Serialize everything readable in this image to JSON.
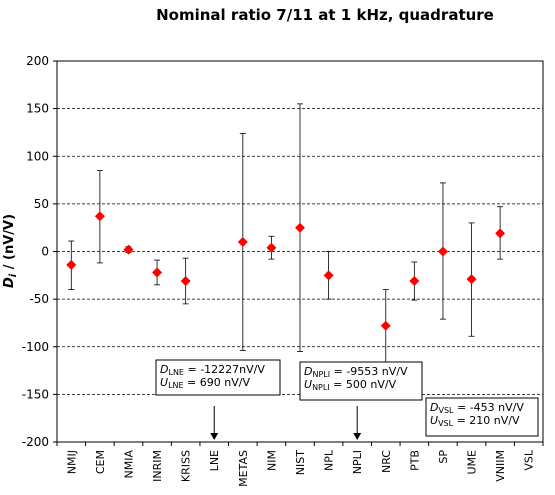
{
  "chart_data": {
    "type": "scatter",
    "title": "Nominal ratio 7/11 at 1 kHz, quadrature",
    "ylabel": "D_i / (nV/V)",
    "ylabel_parts": {
      "main": "D",
      "sub": "i",
      "unit": " / (nV/V)"
    },
    "ylim": [
      -200,
      200
    ],
    "yticks": [
      -200,
      -150,
      -100,
      -50,
      0,
      50,
      100,
      150,
      200
    ],
    "grid": "horizontal dashed",
    "series": [
      {
        "marker": "diamond",
        "color": "#ff0000",
        "points": [
          {
            "lab": "NMIJ",
            "y": -14,
            "err_lo": -40,
            "err_hi": 11
          },
          {
            "lab": "CEM",
            "y": 37,
            "err_lo": -12,
            "err_hi": 85
          },
          {
            "lab": "NMIA",
            "y": 2,
            "err_lo": -1,
            "err_hi": 5
          },
          {
            "lab": "INRIM",
            "y": -22,
            "err_lo": -35,
            "err_hi": -9
          },
          {
            "lab": "KRISS",
            "y": -31,
            "err_lo": -55,
            "err_hi": -7
          },
          {
            "lab": "LNE",
            "y": null,
            "offscale": "down"
          },
          {
            "lab": "METAS",
            "y": 10,
            "err_lo": -104,
            "err_hi": 124
          },
          {
            "lab": "NIM",
            "y": 4,
            "err_lo": -8,
            "err_hi": 16
          },
          {
            "lab": "NIST",
            "y": 25,
            "err_lo": -105,
            "err_hi": 155
          },
          {
            "lab": "NPL",
            "y": -25,
            "err_lo": -50,
            "err_hi": 0
          },
          {
            "lab": "NPLI",
            "y": null,
            "offscale": "down"
          },
          {
            "lab": "NRC",
            "y": -78,
            "err_lo": -117,
            "err_hi": -40
          },
          {
            "lab": "PTB",
            "y": -31,
            "err_lo": -51,
            "err_hi": -11
          },
          {
            "lab": "SP",
            "y": 0,
            "err_lo": -71,
            "err_hi": 72
          },
          {
            "lab": "UME",
            "y": -29,
            "err_lo": -89,
            "err_hi": 30
          },
          {
            "lab": "VNIIM",
            "y": 19,
            "err_lo": -8,
            "err_hi": 47
          },
          {
            "lab": "VSL",
            "y": null,
            "offscale": "down"
          }
        ]
      }
    ],
    "categories": [
      "NMIJ",
      "CEM",
      "NMIA",
      "INRIM",
      "KRISS",
      "LNE",
      "METAS",
      "NIM",
      "NIST",
      "NPL",
      "NPLI",
      "NRC",
      "PTB",
      "SP",
      "UME",
      "VNIIM",
      "VSL"
    ],
    "annotations": [
      {
        "lab": "LNE",
        "lines": [
          {
            "sym": "D",
            "sub": "LNE",
            "text": " = -12227nV/V"
          },
          {
            "sym": "U",
            "sub": "LNE",
            "text": " = 690 nV/V"
          }
        ]
      },
      {
        "lab": "NPLI",
        "lines": [
          {
            "sym": "D",
            "sub": "NPLI",
            "text": " = -9553 nV/V"
          },
          {
            "sym": "U",
            "sub": "NPLI",
            "text": " = 500 nV/V"
          }
        ]
      },
      {
        "lab": "VSL",
        "lines": [
          {
            "sym": "D",
            "sub": "VSL",
            "text": " = -453 nV/V"
          },
          {
            "sym": "U",
            "sub": "VSL",
            "text": " = 210 nV/V"
          }
        ]
      }
    ]
  }
}
